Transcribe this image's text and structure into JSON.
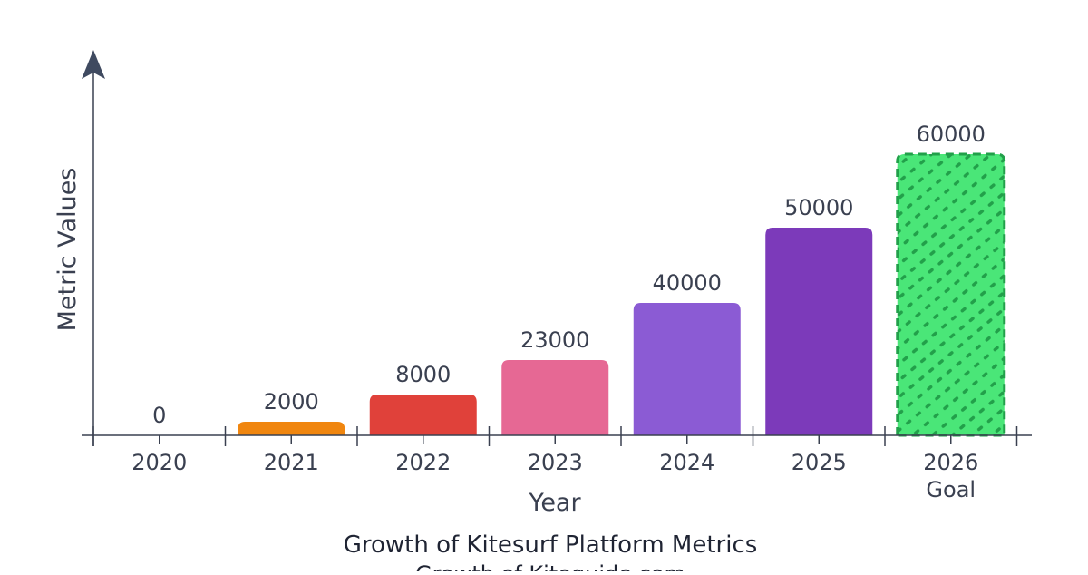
{
  "chart_data": {
    "type": "bar",
    "title": "Growth of Kitesurf Platform Metrics",
    "subtitle": "Growth of Kiteguide.com",
    "xlabel": "Year",
    "ylabel": "Metric Values",
    "categories": [
      [
        "2020"
      ],
      [
        "2021"
      ],
      [
        "2022"
      ],
      [
        "2023"
      ],
      [
        "2024"
      ],
      [
        "2025"
      ],
      [
        "2026",
        "Goal"
      ]
    ],
    "values": [
      0,
      2000,
      8000,
      23000,
      40000,
      50000,
      60000
    ],
    "data_labels": [
      "0",
      "2000",
      "8000",
      "23000",
      "40000",
      "50000",
      "60000"
    ],
    "colors": [
      "#f0860f",
      "#f0860f",
      "#e0413a",
      "#e66894",
      "#8b5bd4",
      "#7c3aba",
      "#4ae678"
    ],
    "goal_pattern_color": "#22a04a",
    "goal_category": "2026 Goal",
    "ylim": [
      0,
      60000
    ],
    "grid": false,
    "legend": "none",
    "axis_color": "#3a4050"
  }
}
